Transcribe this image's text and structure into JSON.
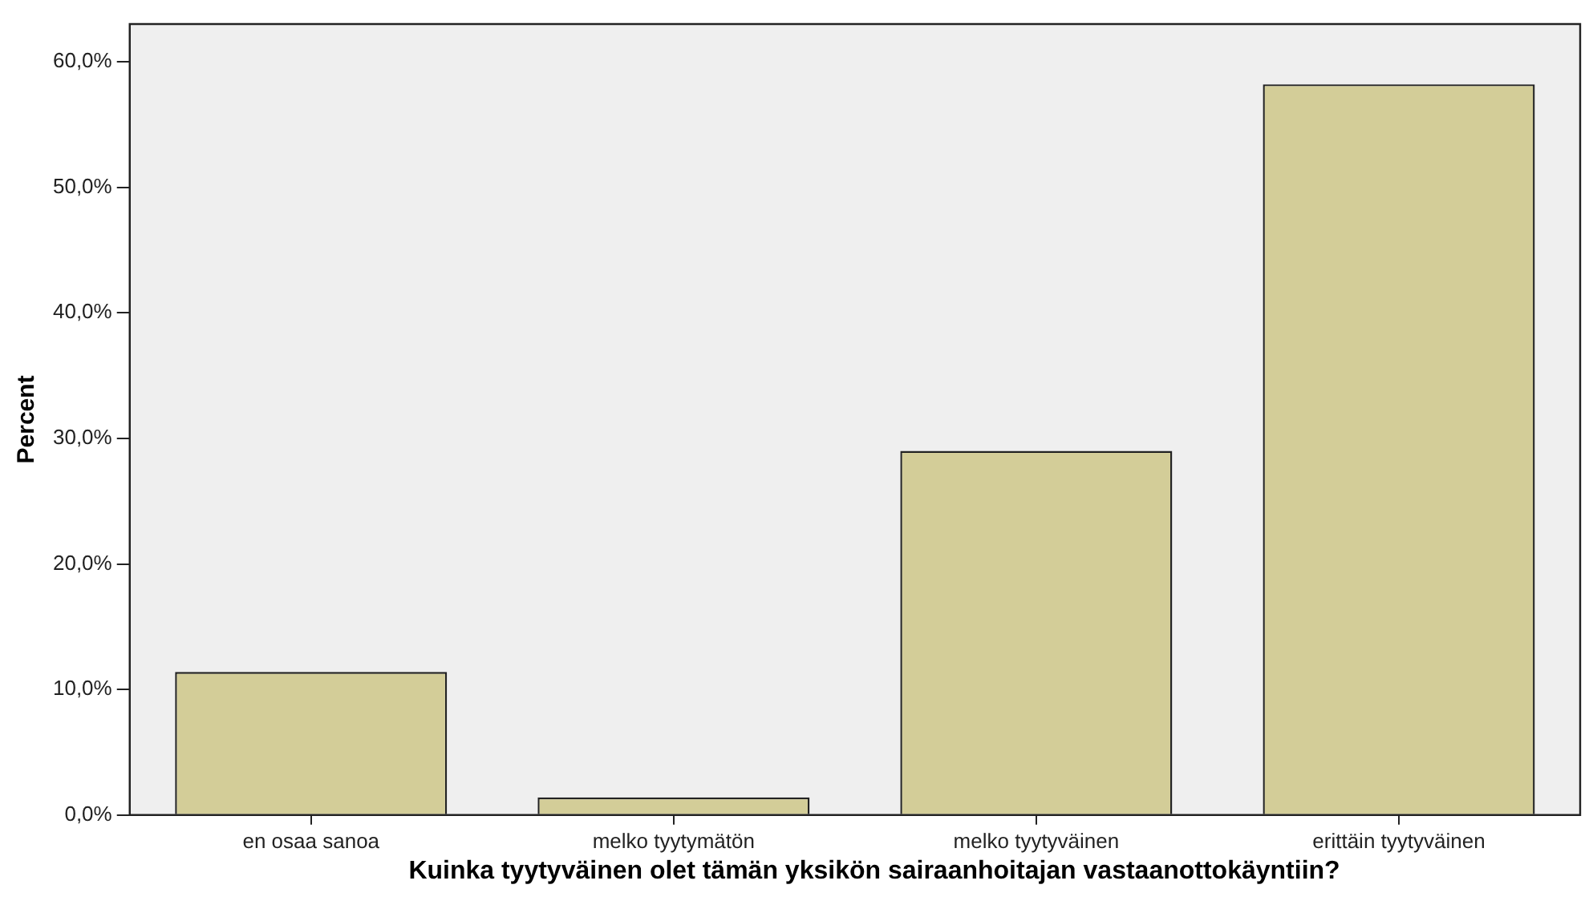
{
  "chart_data": {
    "type": "bar",
    "xlabel": "Kuinka tyytyväinen olet tämän yksikön sairaanhoitajan vastaanottokäyntiin?",
    "ylabel": "Percent",
    "categories": [
      "en osaa sanoa",
      "melko tyytymätön",
      "melko tyytyväinen",
      "erittäin tyytyväinen"
    ],
    "values": [
      11.4,
      1.4,
      29.0,
      58.2
    ],
    "color": "#d3cd98",
    "ylim": [
      0,
      63
    ],
    "yticks": [
      {
        "value": 0,
        "label": "0,0%"
      },
      {
        "value": 10,
        "label": "10,0%"
      },
      {
        "value": 20,
        "label": "20,0%"
      },
      {
        "value": 30,
        "label": "30,0%"
      },
      {
        "value": 40,
        "label": "40,0%"
      },
      {
        "value": 50,
        "label": "50,0%"
      },
      {
        "value": 60,
        "label": "60,0%"
      }
    ],
    "grid": false
  }
}
